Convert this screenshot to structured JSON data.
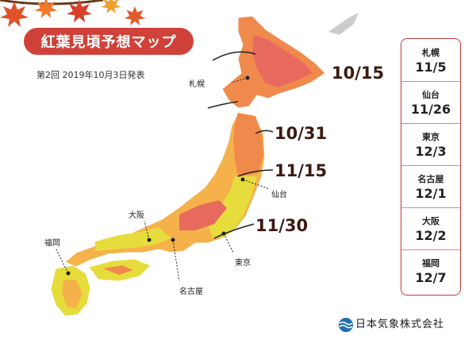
{
  "title": "紅葉見頃予想マップ",
  "subtitle": "第2回  2019年10月3日発表",
  "map_dates": [
    {
      "id": "d1015",
      "text": "10/15"
    },
    {
      "id": "d1031",
      "text": "10/31"
    },
    {
      "id": "d1115",
      "text": "11/15"
    },
    {
      "id": "d1130",
      "text": "11/30"
    }
  ],
  "cities": {
    "sapporo": "札幌",
    "sendai": "仙台",
    "tokyo": "東京",
    "nagoya": "名古屋",
    "osaka": "大阪",
    "fukuoka": "福岡"
  },
  "side_panel": [
    {
      "city": "札幌",
      "date": "11/5"
    },
    {
      "city": "仙台",
      "date": "11/26"
    },
    {
      "city": "東京",
      "date": "12/3"
    },
    {
      "city": "名古屋",
      "date": "12/1"
    },
    {
      "city": "大阪",
      "date": "12/2"
    },
    {
      "city": "福岡",
      "date": "12/7"
    }
  ],
  "brand": "日本気象株式会社",
  "colors": {
    "banner": "#d0413a",
    "date_text": "#3a1a12",
    "zone_1015": "#e86a5e",
    "zone_1031": "#f08a4c",
    "zone_1115": "#f5b24a",
    "zone_1130": "#e6dc3c",
    "zone_late": "#dfe74a",
    "panel_border": "#c23a3a",
    "logo_blue": "#1f6fb6"
  },
  "icons": {
    "leaves": "maple-leaf-icon",
    "logo": "weather-wave-logo-icon"
  }
}
